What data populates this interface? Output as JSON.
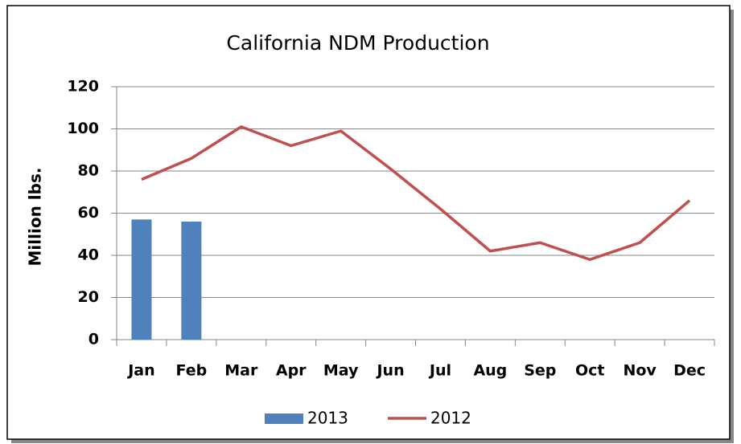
{
  "chart_data": {
    "type": "bar_line",
    "title": "California NDM Production",
    "y_label": "Million lbs.",
    "categories": [
      "Jan",
      "Feb",
      "Mar",
      "Apr",
      "May",
      "Jun",
      "Jul",
      "Aug",
      "Sep",
      "Oct",
      "Nov",
      "Dec"
    ],
    "series": [
      {
        "name": "2013",
        "type": "bar",
        "color": "#4f81bd",
        "values": [
          57,
          56,
          null,
          null,
          null,
          null,
          null,
          null,
          null,
          null,
          null,
          null
        ]
      },
      {
        "name": "2012",
        "type": "line",
        "color": "#c0504d",
        "values": [
          76,
          86,
          101,
          92,
          99,
          81,
          62,
          42,
          46,
          38,
          46,
          66
        ]
      }
    ],
    "ylim": [
      0,
      120
    ],
    "yticks": [
      0,
      20,
      40,
      60,
      80,
      100,
      120
    ],
    "grid": true,
    "legend": "bottom"
  }
}
